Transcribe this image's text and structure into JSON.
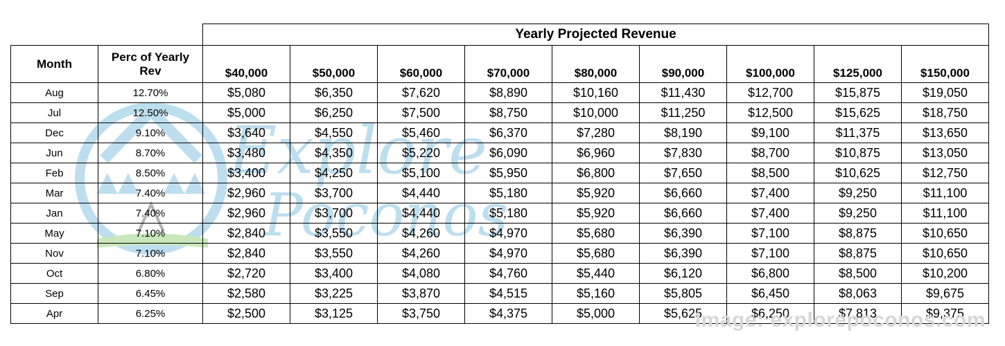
{
  "table": {
    "group_header": "Yearly Projected Revenue",
    "month_header": "Month",
    "perc_header_line1": "Perc of Yearly",
    "perc_header_line2": "Rev",
    "revenue_columns": [
      "$40,000",
      "$50,000",
      "$60,000",
      "$70,000",
      "$80,000",
      "$90,000",
      "$100,000",
      "$125,000",
      "$150,000"
    ],
    "rows": [
      {
        "month": "Aug",
        "perc": "12.70%",
        "values": [
          "$5,080",
          "$6,350",
          "$7,620",
          "$8,890",
          "$10,160",
          "$11,430",
          "$12,700",
          "$15,875",
          "$19,050"
        ]
      },
      {
        "month": "Jul",
        "perc": "12.50%",
        "values": [
          "$5,000",
          "$6,250",
          "$7,500",
          "$8,750",
          "$10,000",
          "$11,250",
          "$12,500",
          "$15,625",
          "$18,750"
        ]
      },
      {
        "month": "Dec",
        "perc": "9.10%",
        "values": [
          "$3,640",
          "$4,550",
          "$5,460",
          "$6,370",
          "$7,280",
          "$8,190",
          "$9,100",
          "$11,375",
          "$13,650"
        ]
      },
      {
        "month": "Jun",
        "perc": "8.70%",
        "values": [
          "$3,480",
          "$4,350",
          "$5,220",
          "$6,090",
          "$6,960",
          "$7,830",
          "$8,700",
          "$10,875",
          "$13,050"
        ]
      },
      {
        "month": "Feb",
        "perc": "8.50%",
        "values": [
          "$3,400",
          "$4,250",
          "$5,100",
          "$5,950",
          "$6,800",
          "$7,650",
          "$8,500",
          "$10,625",
          "$12,750"
        ]
      },
      {
        "month": "Mar",
        "perc": "7.40%",
        "values": [
          "$2,960",
          "$3,700",
          "$4,440",
          "$5,180",
          "$5,920",
          "$6,660",
          "$7,400",
          "$9,250",
          "$11,100"
        ]
      },
      {
        "month": "Jan",
        "perc": "7.40%",
        "values": [
          "$2,960",
          "$3,700",
          "$4,440",
          "$5,180",
          "$5,920",
          "$6,660",
          "$7,400",
          "$9,250",
          "$11,100"
        ]
      },
      {
        "month": "May",
        "perc": "7.10%",
        "values": [
          "$2,840",
          "$3,550",
          "$4,260",
          "$4,970",
          "$5,680",
          "$6,390",
          "$7,100",
          "$8,875",
          "$10,650"
        ]
      },
      {
        "month": "Nov",
        "perc": "7.10%",
        "values": [
          "$2,840",
          "$3,550",
          "$4,260",
          "$4,970",
          "$5,680",
          "$6,390",
          "$7,100",
          "$8,875",
          "$10,650"
        ]
      },
      {
        "month": "Oct",
        "perc": "6.80%",
        "values": [
          "$2,720",
          "$3,400",
          "$4,080",
          "$4,760",
          "$5,440",
          "$6,120",
          "$6,800",
          "$8,500",
          "$10,200"
        ]
      },
      {
        "month": "Sep",
        "perc": "6.45%",
        "values": [
          "$2,580",
          "$3,225",
          "$3,870",
          "$4,515",
          "$5,160",
          "$5,805",
          "$6,450",
          "$8,063",
          "$9,675"
        ]
      },
      {
        "month": "Apr",
        "perc": "6.25%",
        "values": [
          "$2,500",
          "$3,125",
          "$3,750",
          "$4,375",
          "$5,000",
          "$5,625",
          "$6,250",
          "$7,813",
          "$9,375"
        ]
      }
    ]
  },
  "watermark": {
    "logo_line1": "Explore",
    "logo_line2": "Poconos",
    "color": "#a8d4ea"
  },
  "credit": "Image: explorepoconos.com"
}
